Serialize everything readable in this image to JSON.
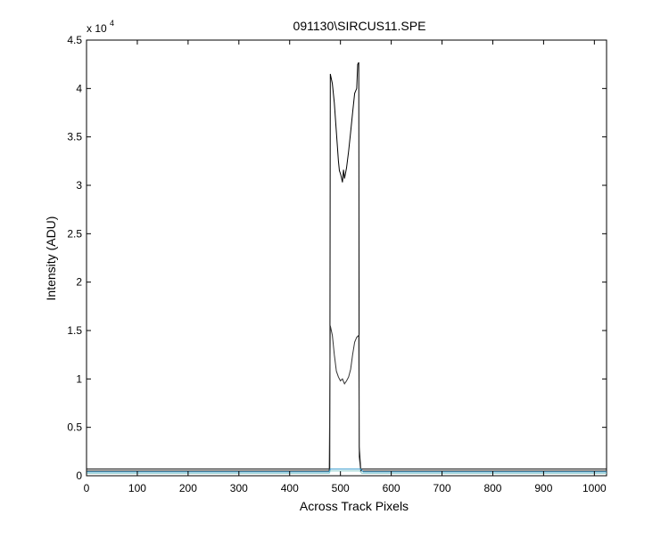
{
  "chart_data": {
    "type": "line",
    "title": "091130\\SIRCUS11.SPE",
    "xlabel": "Across Track Pixels",
    "ylabel": "Intensity (ADU)",
    "y_exponent_label": "x 10",
    "y_exponent_power": "4",
    "xlim": [
      0,
      1024
    ],
    "ylim": [
      0,
      45000
    ],
    "xticks": [
      0,
      100,
      200,
      300,
      400,
      500,
      600,
      700,
      800,
      900,
      1000
    ],
    "yticks": [
      0,
      0.5,
      1,
      1.5,
      2,
      2.5,
      3,
      3.5,
      4,
      4.5
    ],
    "y_scale_factor": 10000,
    "grid": false,
    "legend": "none",
    "series": [
      {
        "color": "#000000",
        "x": [
          0,
          478,
          479,
          480,
          484,
          488,
          492,
          496,
          498,
          500,
          502,
          504,
          506,
          508,
          512,
          516,
          520,
          524,
          528,
          532,
          534,
          536,
          537,
          540,
          1024
        ],
        "y": [
          700,
          700,
          500,
          41500,
          40500,
          38500,
          35500,
          32500,
          31500,
          31200,
          30800,
          30300,
          31600,
          30700,
          31800,
          33500,
          35500,
          37500,
          39500,
          40000,
          42500,
          42700,
          3000,
          700,
          700
        ]
      },
      {
        "color": "#333333",
        "x": [
          0,
          478,
          479,
          480,
          484,
          488,
          492,
          496,
          500,
          504,
          508,
          512,
          516,
          520,
          524,
          528,
          532,
          536,
          537,
          540,
          1024
        ],
        "y": [
          500,
          500,
          8000,
          15500,
          14500,
          12500,
          10800,
          10200,
          9800,
          10000,
          9500,
          9800,
          10200,
          11000,
          12500,
          13800,
          14300,
          14500,
          2000,
          500,
          500
        ]
      },
      {
        "color": "#3399cc",
        "x": [
          0,
          478,
          480,
          540,
          545,
          1024
        ],
        "y": [
          400,
          400,
          700,
          700,
          400,
          400
        ]
      },
      {
        "color": "#88cccc",
        "x": [
          0,
          478,
          480,
          538,
          542,
          1024
        ],
        "y": [
          250,
          250,
          500,
          500,
          250,
          250
        ]
      }
    ]
  }
}
